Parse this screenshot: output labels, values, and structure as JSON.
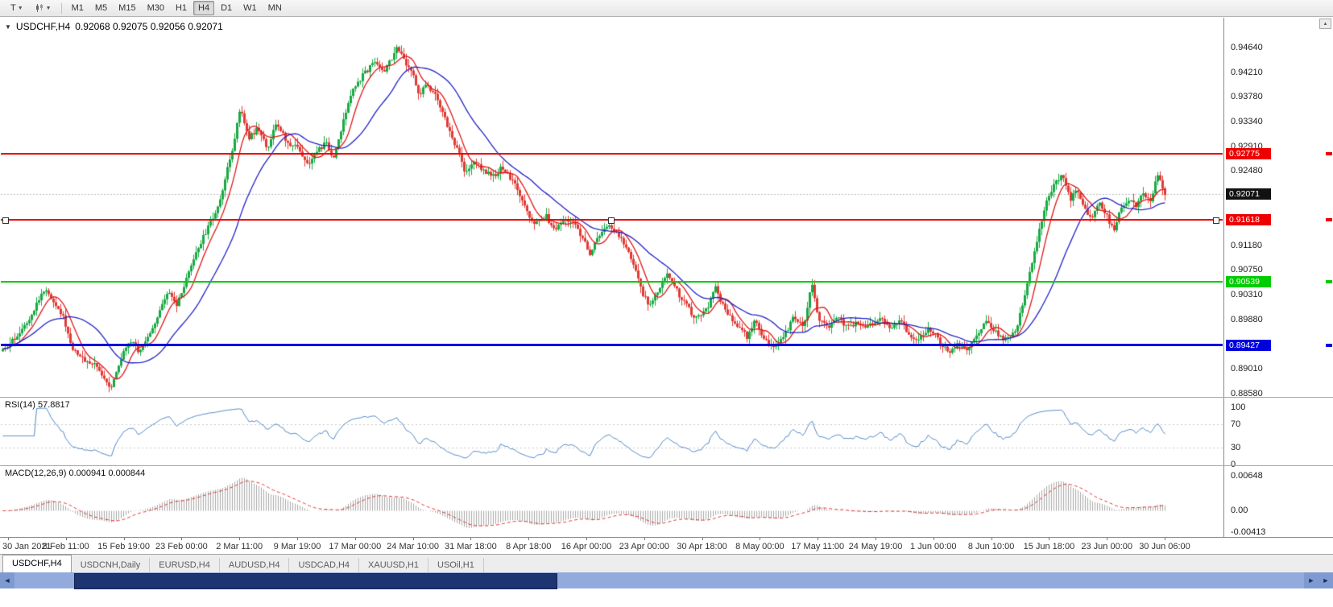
{
  "toolbar": {
    "templates_label": "T",
    "timeframes": [
      "M1",
      "M5",
      "M15",
      "M30",
      "H1",
      "H4",
      "D1",
      "W1",
      "MN"
    ],
    "active_timeframe": "H4"
  },
  "chart": {
    "symbol": "USDCHF,H4",
    "ohlc": "0.92068 0.92075 0.92056 0.92071"
  },
  "price_axis": {
    "labels": [
      "0.94640",
      "0.94210",
      "0.93780",
      "0.93340",
      "0.92910",
      "0.92480",
      "0.92050",
      "0.91620",
      "0.91180",
      "0.90750",
      "0.90310",
      "0.89880",
      "0.89450",
      "0.89010",
      "0.88580"
    ]
  },
  "time_axis": {
    "labels": [
      "30 Jan 2021",
      "8 Feb 11:00",
      "15 Feb 19:00",
      "23 Feb 00:00",
      "2 Mar 11:00",
      "9 Mar 19:00",
      "17 Mar 00:00",
      "24 Mar 10:00",
      "31 Mar 18:00",
      "8 Apr 18:00",
      "16 Apr 00:00",
      "23 Apr 00:00",
      "30 Apr 18:00",
      "8 May 00:00",
      "17 May 11:00",
      "24 May 19:00",
      "1 Jun 00:00",
      "8 Jun 10:00",
      "15 Jun 18:00",
      "23 Jun 00:00",
      "30 Jun 06:00"
    ]
  },
  "levels": {
    "hlines": [
      {
        "value": 0.92775,
        "label": "0.92775",
        "color": "#ee0000",
        "thickness": 2,
        "selected": false
      },
      {
        "value": 0.91618,
        "label": "0.91618",
        "color": "#ee0000",
        "thickness": 2,
        "selected": true
      },
      {
        "value": 0.90539,
        "label": "0.90539",
        "color": "#00cc00",
        "thickness": 2,
        "selected": false
      },
      {
        "value": 0.89427,
        "label": "0.89427",
        "color": "#0000dd",
        "thickness": 3,
        "selected": false
      }
    ],
    "current_price": {
      "value": 0.92071,
      "label": "0.92071",
      "tag_bg": "#111111"
    }
  },
  "indicators": {
    "rsi": {
      "label": "RSI(14) 57.8817",
      "value": 57.8817,
      "period": 14,
      "color": "#4f86c6",
      "levels": [
        70,
        30
      ],
      "axis_labels": [
        {
          "v": 100,
          "t": "100"
        },
        {
          "v": 70,
          "t": "70"
        },
        {
          "v": 30,
          "t": "30"
        },
        {
          "v": 0,
          "t": "0"
        }
      ]
    },
    "macd": {
      "label": "MACD(12,26,9) 0.000941 0.000844",
      "values": [
        0.000941,
        0.000844
      ],
      "fast": 12,
      "slow": 26,
      "signal": 9,
      "hist_color": "#a8a8a8",
      "signal_color": "#e03030",
      "axis_labels": [
        {
          "v": 0.00648,
          "t": "0.00648"
        },
        {
          "v": 0,
          "t": "0.00"
        },
        {
          "v": -0.00413,
          "t": "-0.00413"
        }
      ]
    }
  },
  "tabs": {
    "items": [
      "USDCHF,H4",
      "USDCNH,Daily",
      "EURUSD,H4",
      "AUDUSD,H4",
      "USDCAD,H4",
      "XAUUSD,H1",
      "USOil,H1"
    ],
    "active": "USDCHF,H4"
  },
  "chart_data": {
    "type": "candlestick",
    "title": "USDCHF H4",
    "price_range": [
      0.8858,
      0.9464
    ],
    "x_range_labels": [
      "30 Jan 2021",
      "30 Jun 06:00"
    ],
    "candle_count": 482,
    "up_color": "#17a943",
    "down_color": "#e03a34",
    "ma_fast": {
      "period": 8,
      "color": "#e01616"
    },
    "ma_slow": {
      "period": 26,
      "color": "#2020c8"
    },
    "waypoints": [
      [
        0.003,
        0.8932
      ],
      [
        0.013,
        0.8958
      ],
      [
        0.024,
        0.8992
      ],
      [
        0.036,
        0.904
      ],
      [
        0.045,
        0.9018
      ],
      [
        0.052,
        0.899
      ],
      [
        0.058,
        0.8942
      ],
      [
        0.068,
        0.8918
      ],
      [
        0.078,
        0.8908
      ],
      [
        0.088,
        0.8878
      ],
      [
        0.091,
        0.887
      ],
      [
        0.1,
        0.8925
      ],
      [
        0.108,
        0.8952
      ],
      [
        0.114,
        0.8928
      ],
      [
        0.122,
        0.8962
      ],
      [
        0.13,
        0.8998
      ],
      [
        0.138,
        0.9035
      ],
      [
        0.145,
        0.9012
      ],
      [
        0.153,
        0.9058
      ],
      [
        0.162,
        0.9112
      ],
      [
        0.171,
        0.915
      ],
      [
        0.179,
        0.9188
      ],
      [
        0.189,
        0.9272
      ],
      [
        0.197,
        0.9358
      ],
      [
        0.204,
        0.9306
      ],
      [
        0.211,
        0.9322
      ],
      [
        0.219,
        0.9288
      ],
      [
        0.227,
        0.9332
      ],
      [
        0.236,
        0.9295
      ],
      [
        0.244,
        0.9292
      ],
      [
        0.252,
        0.926
      ],
      [
        0.259,
        0.9278
      ],
      [
        0.267,
        0.9298
      ],
      [
        0.273,
        0.9268
      ],
      [
        0.281,
        0.933
      ],
      [
        0.29,
        0.9396
      ],
      [
        0.299,
        0.9418
      ],
      [
        0.307,
        0.9442
      ],
      [
        0.315,
        0.9422
      ],
      [
        0.326,
        0.9465
      ],
      [
        0.333,
        0.9432
      ],
      [
        0.339,
        0.9416
      ],
      [
        0.344,
        0.938
      ],
      [
        0.35,
        0.9402
      ],
      [
        0.359,
        0.9372
      ],
      [
        0.366,
        0.9332
      ],
      [
        0.375,
        0.9286
      ],
      [
        0.382,
        0.9242
      ],
      [
        0.389,
        0.9268
      ],
      [
        0.396,
        0.925
      ],
      [
        0.405,
        0.9238
      ],
      [
        0.412,
        0.9256
      ],
      [
        0.422,
        0.9224
      ],
      [
        0.431,
        0.9182
      ],
      [
        0.438,
        0.9152
      ],
      [
        0.448,
        0.917
      ],
      [
        0.455,
        0.9142
      ],
      [
        0.462,
        0.9164
      ],
      [
        0.471,
        0.916
      ],
      [
        0.478,
        0.913
      ],
      [
        0.484,
        0.9102
      ],
      [
        0.491,
        0.9134
      ],
      [
        0.501,
        0.9153
      ],
      [
        0.511,
        0.9122
      ],
      [
        0.521,
        0.908
      ],
      [
        0.527,
        0.903
      ],
      [
        0.534,
        0.9012
      ],
      [
        0.541,
        0.9044
      ],
      [
        0.547,
        0.9068
      ],
      [
        0.557,
        0.9032
      ],
      [
        0.564,
        0.901
      ],
      [
        0.57,
        0.899
      ],
      [
        0.58,
        0.9006
      ],
      [
        0.587,
        0.9044
      ],
      [
        0.593,
        0.9012
      ],
      [
        0.603,
        0.8982
      ],
      [
        0.613,
        0.8958
      ],
      [
        0.619,
        0.8988
      ],
      [
        0.626,
        0.8952
      ],
      [
        0.636,
        0.894
      ],
      [
        0.646,
        0.897
      ],
      [
        0.652,
        0.8994
      ],
      [
        0.659,
        0.8974
      ],
      [
        0.666,
        0.9052
      ],
      [
        0.672,
        0.8985
      ],
      [
        0.68,
        0.8972
      ],
      [
        0.688,
        0.8992
      ],
      [
        0.695,
        0.8972
      ],
      [
        0.703,
        0.8982
      ],
      [
        0.712,
        0.8974
      ],
      [
        0.722,
        0.8992
      ],
      [
        0.73,
        0.897
      ],
      [
        0.738,
        0.8988
      ],
      [
        0.746,
        0.8962
      ],
      [
        0.754,
        0.8952
      ],
      [
        0.762,
        0.8974
      ],
      [
        0.77,
        0.8952
      ],
      [
        0.778,
        0.893
      ],
      [
        0.786,
        0.8944
      ],
      [
        0.794,
        0.893
      ],
      [
        0.802,
        0.8964
      ],
      [
        0.81,
        0.8986
      ],
      [
        0.818,
        0.8962
      ],
      [
        0.826,
        0.8952
      ],
      [
        0.834,
        0.8972
      ],
      [
        0.842,
        0.904
      ],
      [
        0.85,
        0.912
      ],
      [
        0.858,
        0.919
      ],
      [
        0.866,
        0.9228
      ],
      [
        0.872,
        0.9242
      ],
      [
        0.878,
        0.9198
      ],
      [
        0.884,
        0.9216
      ],
      [
        0.89,
        0.918
      ],
      [
        0.896,
        0.9164
      ],
      [
        0.902,
        0.9196
      ],
      [
        0.908,
        0.917
      ],
      [
        0.914,
        0.9142
      ],
      [
        0.92,
        0.9186
      ],
      [
        0.926,
        0.9196
      ],
      [
        0.932,
        0.9188
      ],
      [
        0.938,
        0.921
      ],
      [
        0.944,
        0.9196
      ],
      [
        0.95,
        0.924
      ],
      [
        0.956,
        0.9207
      ]
    ]
  }
}
